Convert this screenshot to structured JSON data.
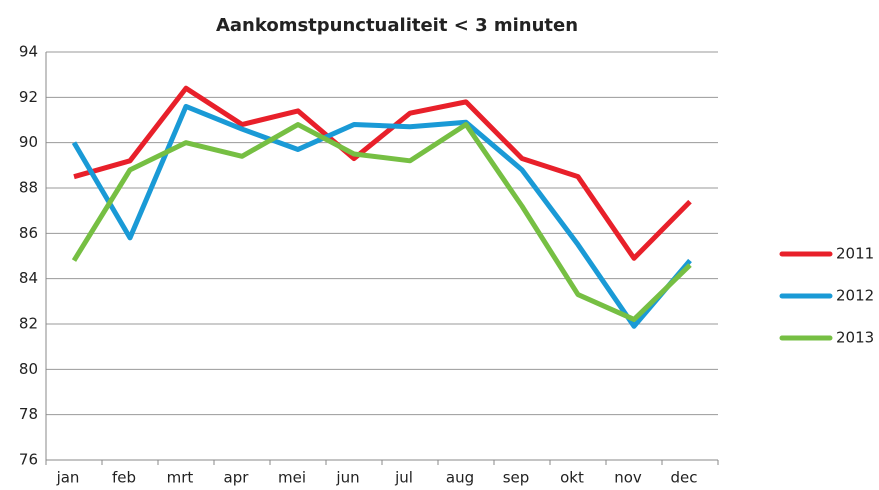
{
  "chart_data": {
    "type": "line",
    "title": "Aankomstpunctualiteit < 3 minuten",
    "categories": [
      "jan",
      "feb",
      "mrt",
      "apr",
      "mei",
      "jun",
      "jul",
      "aug",
      "sep",
      "okt",
      "nov",
      "dec"
    ],
    "series": [
      {
        "name": "2011",
        "color": "#e8202a",
        "values": [
          88.5,
          89.2,
          92.4,
          90.8,
          91.4,
          89.3,
          91.3,
          91.8,
          89.3,
          88.5,
          84.9,
          87.4
        ]
      },
      {
        "name": "2012",
        "color": "#1a9ad6",
        "values": [
          90.0,
          85.8,
          91.6,
          90.6,
          89.7,
          90.8,
          90.7,
          90.9,
          88.8,
          85.5,
          81.9,
          84.8
        ]
      },
      {
        "name": "2013",
        "color": "#76bf43",
        "values": [
          84.8,
          88.8,
          90.0,
          89.4,
          90.8,
          89.5,
          89.2,
          90.8,
          87.2,
          83.3,
          82.2,
          84.6
        ]
      }
    ],
    "ylim": [
      76,
      94
    ],
    "yticks": [
      76,
      78,
      80,
      82,
      84,
      86,
      88,
      90,
      92,
      94
    ],
    "grid": true,
    "legend": "right"
  }
}
